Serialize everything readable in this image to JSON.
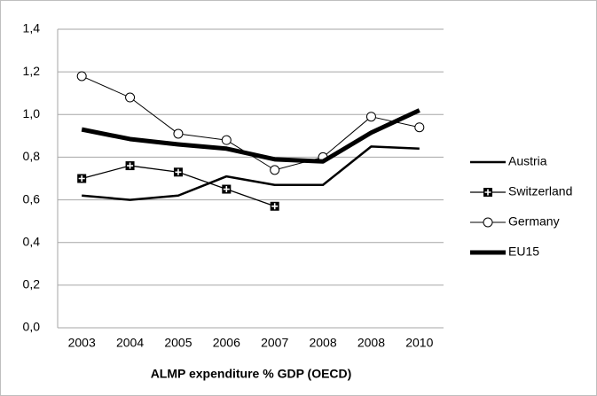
{
  "chart_data": {
    "type": "line",
    "x_label": "ALMP expenditure % GDP (OECD)",
    "categories": [
      "2003",
      "2004",
      "2005",
      "2006",
      "2007",
      "2008",
      "2008",
      "2010"
    ],
    "series": [
      {
        "name": "Austria",
        "color": "#000000",
        "line_width": 2.5,
        "marker": "none",
        "values": [
          0.62,
          0.6,
          0.62,
          0.71,
          0.67,
          0.67,
          0.85,
          0.84
        ]
      },
      {
        "name": "Switzerland",
        "color": "#000000",
        "line_width": 1.3,
        "marker": "square-plus",
        "values": [
          0.7,
          0.76,
          0.73,
          0.65,
          0.57,
          null,
          null,
          null
        ]
      },
      {
        "name": "Germany",
        "color": "#000000",
        "line_width": 1,
        "marker": "circle",
        "values": [
          1.18,
          1.08,
          0.91,
          0.88,
          0.74,
          0.8,
          0.99,
          0.94
        ]
      },
      {
        "name": "EU15",
        "color": "#000000",
        "line_width": 5,
        "marker": "none",
        "values": [
          0.93,
          0.885,
          0.86,
          0.84,
          0.79,
          0.78,
          0.915,
          1.02
        ]
      }
    ],
    "ylim": [
      0,
      1.4
    ],
    "yticks": [
      {
        "value": 0,
        "label": "0,0"
      },
      {
        "value": 0.2,
        "label": "0,2"
      },
      {
        "value": 0.4,
        "label": "0,4"
      },
      {
        "value": 0.6,
        "label": "0,6"
      },
      {
        "value": 0.8,
        "label": "0,8"
      },
      {
        "value": 1.0,
        "label": "1,0"
      },
      {
        "value": 1.2,
        "label": "1,2"
      },
      {
        "value": 1.4,
        "label": "1,4"
      }
    ],
    "grid": true,
    "legend": "right"
  }
}
